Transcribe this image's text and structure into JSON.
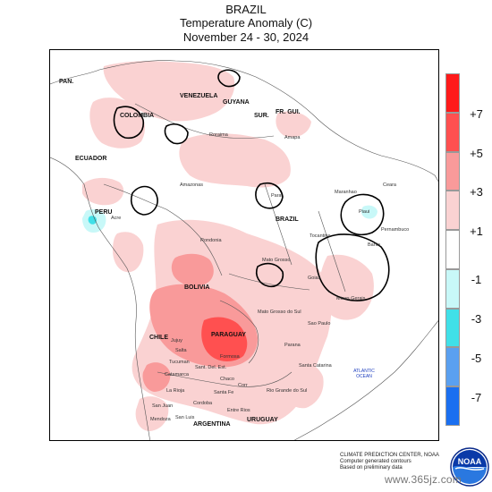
{
  "title": {
    "line1": "BRAZIL",
    "line2": "Temperature Anomaly (C)",
    "line3": "November 24 - 30, 2024"
  },
  "legend": {
    "labels": [
      "+7",
      "+5",
      "+3",
      "+1",
      "-1",
      "-3",
      "-5",
      "-7"
    ],
    "colors": [
      "#ff1a1a",
      "#ff5050",
      "#f99a9a",
      "#fad2d2",
      "#ffffff",
      "#c8f8f8",
      "#40e0e8",
      "#5aa0f0",
      "#1a6ff0"
    ]
  },
  "map": {
    "countries": [
      "PAN.",
      "VENEZUELA",
      "COLOMBIA",
      "GUYANA",
      "SUR.",
      "FR. GUI.",
      "ECUADOR",
      "PERU",
      "BRAZIL",
      "BOLIVIA",
      "PARAGUAY",
      "CHILE",
      "ARGENTINA",
      "URUGUAY"
    ],
    "regions": [
      "Roraima",
      "Amapa",
      "Amazonas",
      "Para",
      "Maranhao",
      "Ceara",
      "Piaui",
      "Acre",
      "Rondonia",
      "Tocantins",
      "Bahia",
      "Mato Grosso",
      "Goias",
      "Minas Gerais",
      "Mato Grosso do Sul",
      "Sao Paulo",
      "Parana",
      "Santa Catarina",
      "Rio Grande do Sul",
      "Corr",
      "Santa Fe",
      "Entre Rios",
      "Cordoba",
      "Salta",
      "Jujuy",
      "Tucuman",
      "Sant. Del. Est.",
      "Chaco",
      "Formosa",
      "La Rioja",
      "Catamarca",
      "San Juan",
      "Mendoza",
      "San Luis",
      "Pernambuco"
    ],
    "ocean": "ATLANTIC OCEAN"
  },
  "footer": {
    "line1": "CLIMATE PREDICTION CENTER, NOAA",
    "line2": "Computer generated contours",
    "line3": "Based on preliminary data"
  },
  "logo_text": "NOAA",
  "watermark": "www.365jz.com"
}
